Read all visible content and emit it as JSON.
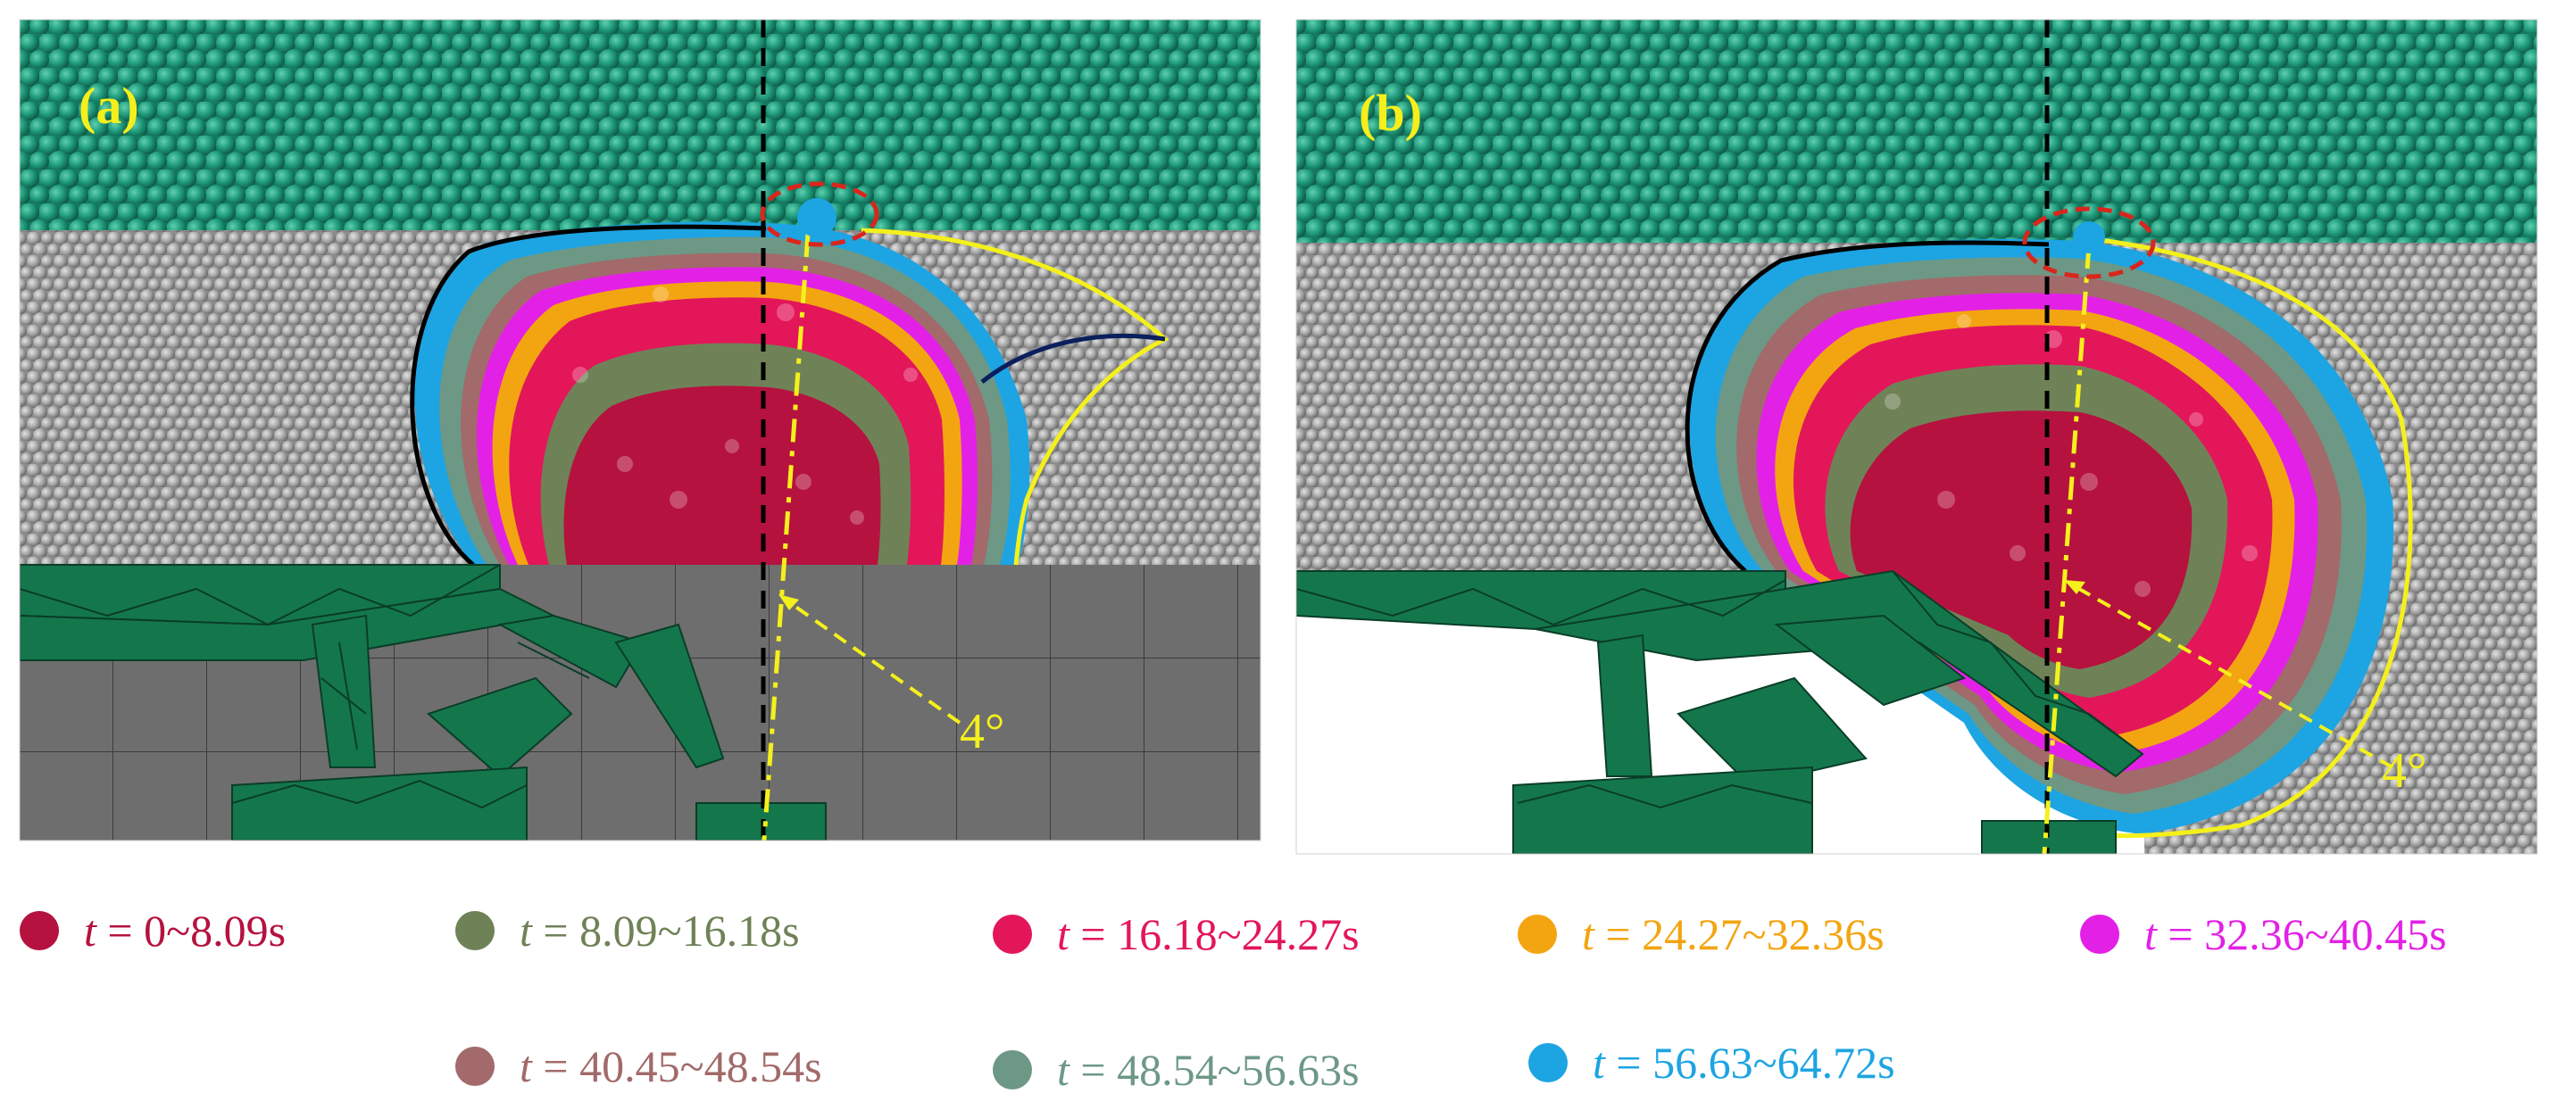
{
  "panels": [
    {
      "id": "a",
      "label": "(a)",
      "angle_label": "4°"
    },
    {
      "id": "b",
      "label": "(b)",
      "angle_label": "4°"
    }
  ],
  "legend": [
    {
      "var": "t",
      "range": " = 0~8.09s",
      "color": "#b5123f"
    },
    {
      "var": "t",
      "range": " = 8.09~16.18s",
      "color": "#6f8257"
    },
    {
      "var": "t",
      "range": " = 16.18~24.27s",
      "color": "#e3165a"
    },
    {
      "var": "t",
      "range": " = 24.27~32.36s",
      "color": "#f3a511"
    },
    {
      "var": "t",
      "range": " = 32.36~40.45s",
      "color": "#e321e6"
    },
    {
      "var": "t",
      "range": " = 40.45~48.54s",
      "color": "#a26a6a"
    },
    {
      "var": "t",
      "range": " = 48.54~56.63s",
      "color": "#6d9886"
    },
    {
      "var": "t",
      "range": " = 56.63~64.72s",
      "color": "#1da4e3"
    }
  ],
  "colors": {
    "overburden": "#1f9a7c",
    "ore": "#a9a9a9",
    "support": "#14774c",
    "floor": "#6e6e6e",
    "panel_label": "#f5ef1c",
    "guide_yellow": "#f4f01c",
    "outline_black": "#000000",
    "marker_red": "#d9261c"
  }
}
